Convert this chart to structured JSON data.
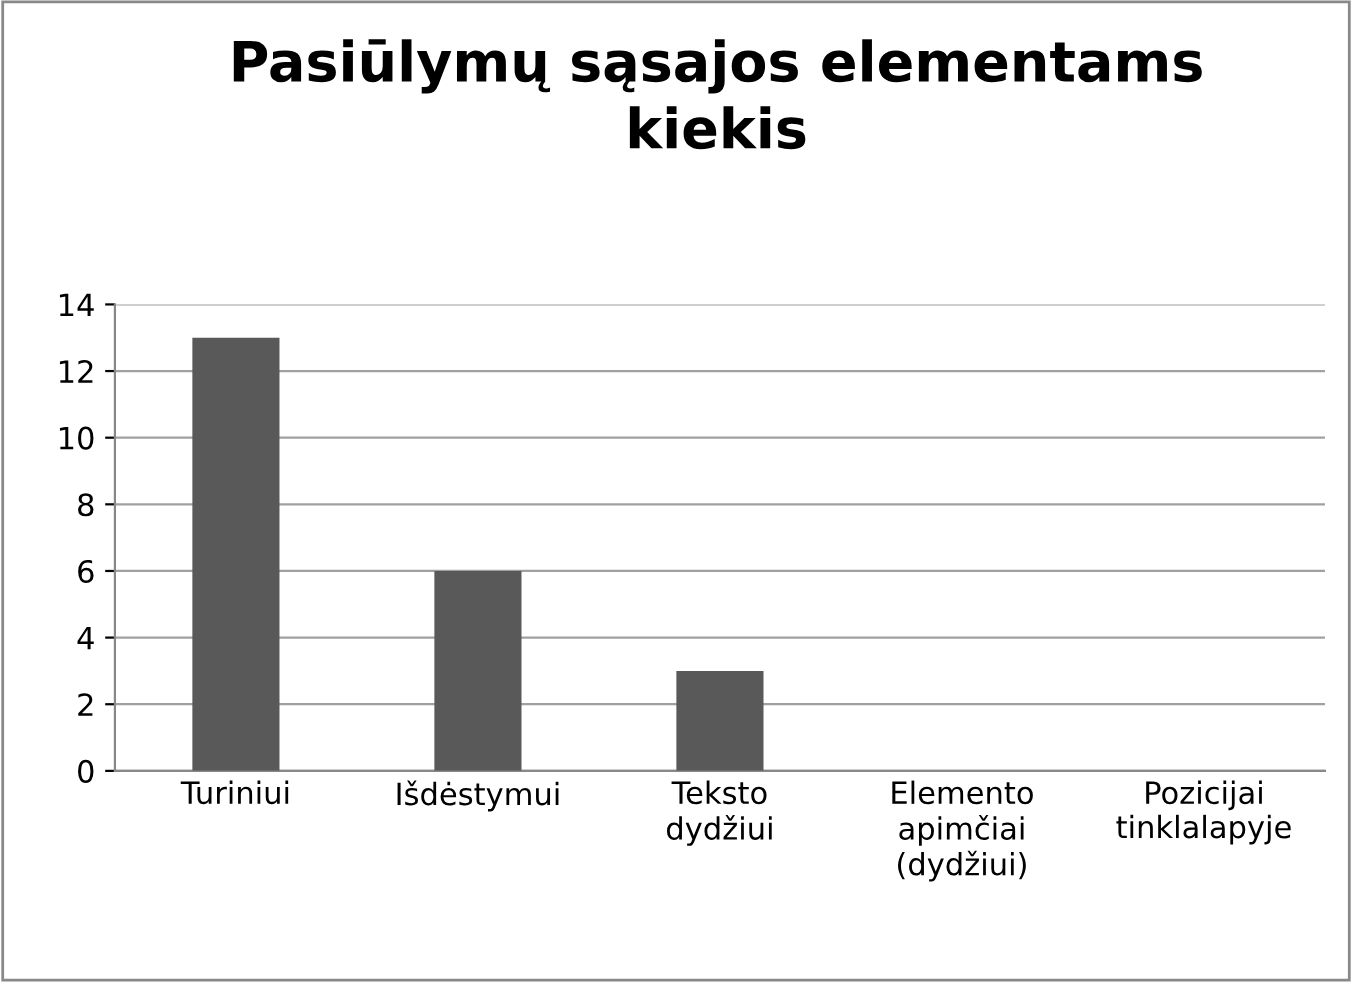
{
  "chart_data": {
    "type": "bar",
    "title": "Pasiūlymų sąsajos elementams\nkiekis",
    "categories": [
      "Turiniui",
      "Išdėstymui",
      "Teksto\ndydžiui",
      "Elemento\napimčiai\n(dydžiui)",
      "Pozicijai\ntinklalapyje"
    ],
    "values": [
      13,
      6,
      3,
      0,
      0
    ],
    "color": "#595959",
    "ylim": [
      0,
      14
    ],
    "yticks": [
      0,
      2,
      4,
      6,
      8,
      10,
      12,
      14
    ],
    "grid": "y",
    "legend": false
  }
}
